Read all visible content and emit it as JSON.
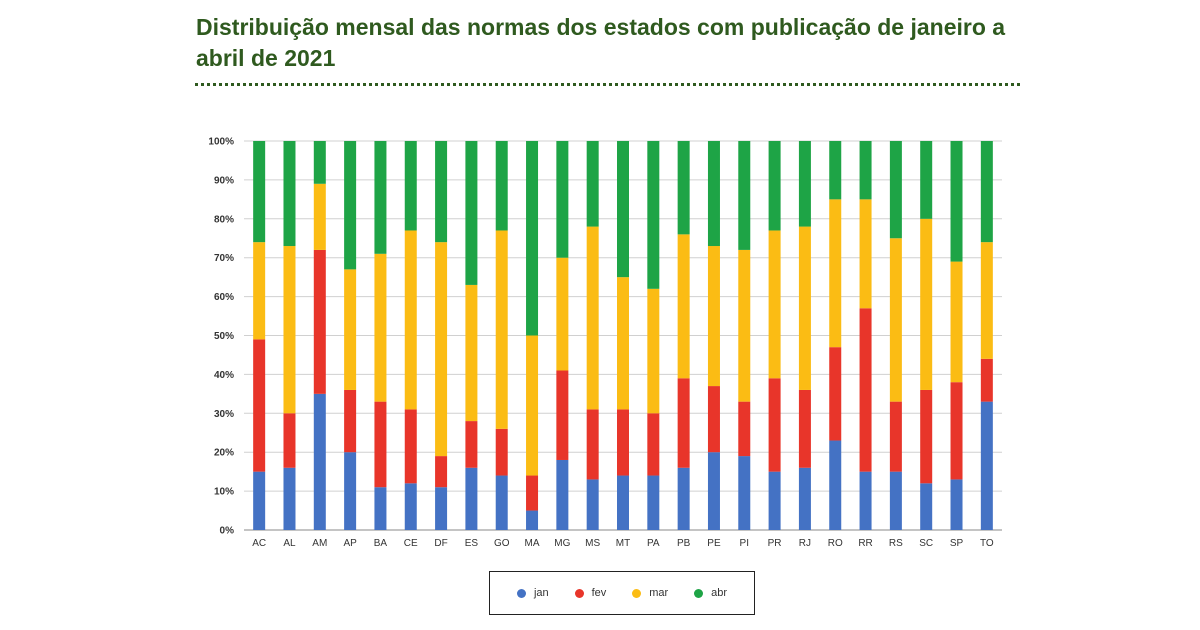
{
  "title": "Distribuição mensal das normas dos estados com publicação de janeiro a abril de 2021",
  "chart_data": {
    "type": "bar",
    "stacked": true,
    "stack_mode": "percent",
    "title": "Distribuição mensal das normas dos estados com publicação de janeiro a abril de 2021",
    "xlabel": "",
    "ylabel": "",
    "ylim": [
      0,
      100
    ],
    "yticks": [
      "0%",
      "10%",
      "20%",
      "30%",
      "40%",
      "50%",
      "60%",
      "70%",
      "80%",
      "90%",
      "100%"
    ],
    "grid": true,
    "legend": "bottom",
    "categories": [
      "AC",
      "AL",
      "AM",
      "AP",
      "BA",
      "CE",
      "DF",
      "ES",
      "GO",
      "MA",
      "MG",
      "MS",
      "MT",
      "PA",
      "PB",
      "PE",
      "PI",
      "PR",
      "RJ",
      "RO",
      "RR",
      "RS",
      "SC",
      "SP",
      "TO"
    ],
    "series": [
      {
        "name": "jan",
        "color": "#4472c4",
        "values": [
          15,
          16,
          35,
          20,
          11,
          12,
          11,
          16,
          14,
          5,
          18,
          13,
          14,
          14,
          16,
          20,
          19,
          15,
          16,
          23,
          15,
          15,
          12,
          13,
          33
        ]
      },
      {
        "name": "fev",
        "color": "#e8352a",
        "values": [
          34,
          14,
          37,
          16,
          22,
          19,
          8,
          12,
          12,
          9,
          23,
          18,
          17,
          16,
          23,
          17,
          14,
          24,
          20,
          24,
          42,
          18,
          24,
          25,
          11
        ]
      },
      {
        "name": "mar",
        "color": "#fbbc14",
        "values": [
          25,
          43,
          17,
          31,
          38,
          46,
          55,
          35,
          51,
          36,
          29,
          47,
          34,
          32,
          37,
          36,
          39,
          38,
          42,
          38,
          28,
          42,
          44,
          31,
          30
        ]
      },
      {
        "name": "abr",
        "color": "#1ea446",
        "values": [
          26,
          27,
          11,
          33,
          29,
          23,
          26,
          37,
          23,
          50,
          30,
          22,
          35,
          38,
          24,
          27,
          28,
          23,
          22,
          15,
          15,
          25,
          20,
          31,
          26
        ]
      }
    ]
  }
}
